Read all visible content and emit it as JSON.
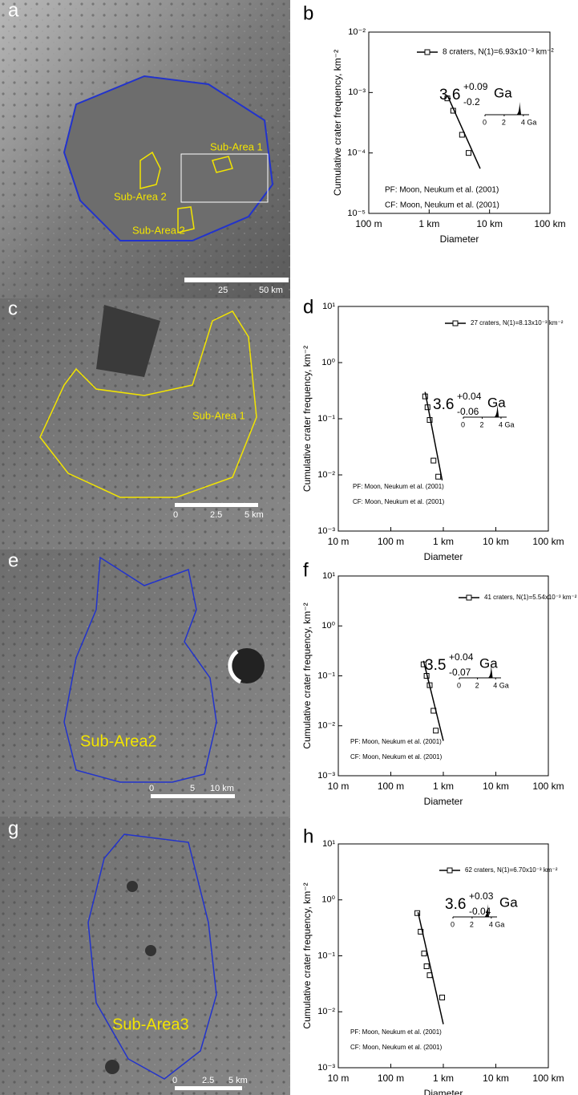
{
  "images": [
    {
      "letter": "a",
      "labels": [
        "Sub-Area 1",
        "Sub-Area 2",
        "Sub-Area 2"
      ],
      "scale": [
        "25",
        "50  km"
      ]
    },
    {
      "letter": "c",
      "labels": [
        "Sub-Area 1"
      ],
      "scale": [
        "0",
        "2.5",
        "5  km"
      ]
    },
    {
      "letter": "e",
      "labels": [
        "Sub-Area2"
      ],
      "scale": [
        "0",
        "5",
        "10 km"
      ]
    },
    {
      "letter": "g",
      "labels": [
        "Sub-Area3"
      ],
      "scale": [
        "0",
        "2.5",
        "5 km"
      ]
    }
  ],
  "chart_data": [
    {
      "type": "scatter",
      "letter": "b",
      "xlabel": "Diameter",
      "ylabel": "Cumulative crater frequency, km⁻²",
      "xscale": "log",
      "yscale": "log",
      "xlim": [
        0.1,
        100
      ],
      "ylim": [
        1e-05,
        0.01
      ],
      "xticks": [
        {
          "value": 0.1,
          "label": "100 m"
        },
        {
          "value": 1,
          "label": "1 km"
        },
        {
          "value": 10,
          "label": "10 km"
        },
        {
          "value": 100,
          "label": "100 km"
        }
      ],
      "yticks": [
        {
          "value": 1e-05,
          "label": "10⁻⁵"
        },
        {
          "value": 0.0001,
          "label": "10⁻⁴"
        },
        {
          "value": 0.001,
          "label": "10⁻³"
        },
        {
          "value": 0.01,
          "label": "10⁻²"
        }
      ],
      "series": [
        {
          "name": "8 craters, N(1)=6.93x10⁻³ km⁻²",
          "color": "#000000",
          "x": [
            2.0,
            2.5,
            3.5,
            4.5
          ],
          "values": [
            0.0008,
            0.0005,
            0.0002,
            0.0001
          ]
        }
      ],
      "fit": {
        "x": [
          2.0,
          7.0
        ],
        "values": [
          0.0009,
          5.5e-05
        ]
      },
      "age": {
        "value": 3.6,
        "plus": "+0.09",
        "minus": "-0.2",
        "unit": "Ga",
        "xlim": [
          0,
          4.6
        ],
        "xticks": [
          0,
          2,
          {
            "value": 4,
            "label": "4 Ga"
          }
        ]
      },
      "notes": [
        "PF: Moon, Neukum et al. (2001)",
        "CF: Moon, Neukum et al. (2001)"
      ]
    },
    {
      "type": "scatter",
      "letter": "d",
      "xlabel": "Diameter",
      "ylabel": "Cumulative crater frequency, km⁻²",
      "xscale": "log",
      "yscale": "log",
      "xlim": [
        0.01,
        100
      ],
      "ylim": [
        0.001,
        10
      ],
      "xticks": [
        {
          "value": 0.01,
          "label": "10 m"
        },
        {
          "value": 0.1,
          "label": "100 m"
        },
        {
          "value": 1,
          "label": "1 km"
        },
        {
          "value": 10,
          "label": "10 km"
        },
        {
          "value": 100,
          "label": "100 km"
        }
      ],
      "yticks": [
        {
          "value": 0.001,
          "label": "10⁻³"
        },
        {
          "value": 0.01,
          "label": "10⁻²"
        },
        {
          "value": 0.1,
          "label": "10⁻¹"
        },
        {
          "value": 1,
          "label": "10⁰"
        },
        {
          "value": 10,
          "label": "10¹"
        }
      ],
      "series": [
        {
          "name": "27 craters, N(1)=8.13x10⁻³ km⁻²",
          "color": "#000000",
          "x": [
            0.45,
            0.5,
            0.55,
            0.65,
            0.8
          ],
          "values": [
            0.25,
            0.16,
            0.095,
            0.018,
            0.0093
          ]
        }
      ],
      "fit": {
        "x": [
          0.45,
          0.95
        ],
        "values": [
          0.3,
          0.008
        ]
      },
      "age": {
        "value": 3.6,
        "plus": "+0.04",
        "minus": "-0.06",
        "unit": "Ga",
        "xlim": [
          0,
          4.6
        ],
        "xticks": [
          0,
          2,
          {
            "value": 4,
            "label": "4 Ga"
          }
        ]
      },
      "notes": [
        "PF: Moon, Neukum et al. (2001)",
        "CF: Moon, Neukum et al. (2001)"
      ]
    },
    {
      "type": "scatter",
      "letter": "f",
      "xlabel": "Diameter",
      "ylabel": "Cumulative crater frequency, km⁻²",
      "xscale": "log",
      "yscale": "log",
      "xlim": [
        0.01,
        100
      ],
      "ylim": [
        0.001,
        10
      ],
      "xticks": [
        {
          "value": 0.01,
          "label": "10 m"
        },
        {
          "value": 0.1,
          "label": "100 m"
        },
        {
          "value": 1,
          "label": "1 km"
        },
        {
          "value": 10,
          "label": "10 km"
        },
        {
          "value": 100,
          "label": "100 km"
        }
      ],
      "yticks": [
        {
          "value": 0.001,
          "label": "10⁻³"
        },
        {
          "value": 0.01,
          "label": "10⁻²"
        },
        {
          "value": 0.1,
          "label": "10⁻¹"
        },
        {
          "value": 1,
          "label": "10⁰"
        },
        {
          "value": 10,
          "label": "10¹"
        }
      ],
      "series": [
        {
          "name": "41 craters, N(1)=5.54x10⁻³ km⁻²",
          "color": "#000000",
          "x": [
            0.42,
            0.48,
            0.55,
            0.65,
            0.72
          ],
          "values": [
            0.17,
            0.1,
            0.065,
            0.02,
            0.008
          ]
        }
      ],
      "fit": {
        "x": [
          0.42,
          1.0
        ],
        "values": [
          0.2,
          0.005
        ]
      },
      "age": {
        "value": 3.5,
        "plus": "+0.04",
        "minus": "-0.07",
        "unit": "Ga",
        "xlim": [
          0,
          4.6
        ],
        "xticks": [
          0,
          2,
          {
            "value": 4,
            "label": "4 Ga"
          }
        ]
      },
      "notes": [
        "PF: Moon, Neukum et al. (2001)",
        "CF: Moon, Neukum et al. (2001)"
      ]
    },
    {
      "type": "scatter",
      "letter": "h",
      "xlabel": "Diameter",
      "ylabel": "Cumulative crater frequency, km⁻²",
      "xscale": "log",
      "yscale": "log",
      "xlim": [
        0.01,
        100
      ],
      "ylim": [
        0.001,
        10
      ],
      "xticks": [
        {
          "value": 0.01,
          "label": "10 m"
        },
        {
          "value": 0.1,
          "label": "100 m"
        },
        {
          "value": 1,
          "label": "1 km"
        },
        {
          "value": 10,
          "label": "10 km"
        },
        {
          "value": 100,
          "label": "100 km"
        }
      ],
      "yticks": [
        {
          "value": 0.001,
          "label": "10⁻³"
        },
        {
          "value": 0.01,
          "label": "10⁻²"
        },
        {
          "value": 0.1,
          "label": "10⁻¹"
        },
        {
          "value": 1,
          "label": "10⁰"
        },
        {
          "value": 10,
          "label": "10¹"
        }
      ],
      "series": [
        {
          "name": "62 craters, N(1)=6.70x10⁻³ km⁻²",
          "color": "#000000",
          "x": [
            0.32,
            0.37,
            0.43,
            0.48,
            0.55,
            0.95
          ],
          "values": [
            0.58,
            0.27,
            0.11,
            0.065,
            0.045,
            0.018
          ]
        }
      ],
      "fit": {
        "x": [
          0.33,
          1.0
        ],
        "values": [
          0.6,
          0.006
        ]
      },
      "age": {
        "value": 3.6,
        "plus": "+0.03",
        "minus": "-0.04",
        "unit": "Ga",
        "xlim": [
          0,
          4.6
        ],
        "xticks": [
          0,
          2,
          {
            "value": 4,
            "label": "4 Ga"
          }
        ]
      },
      "notes": [
        "PF: Moon, Neukum et al. (2001)",
        "CF: Moon, Neukum et al. (2001)"
      ]
    }
  ]
}
